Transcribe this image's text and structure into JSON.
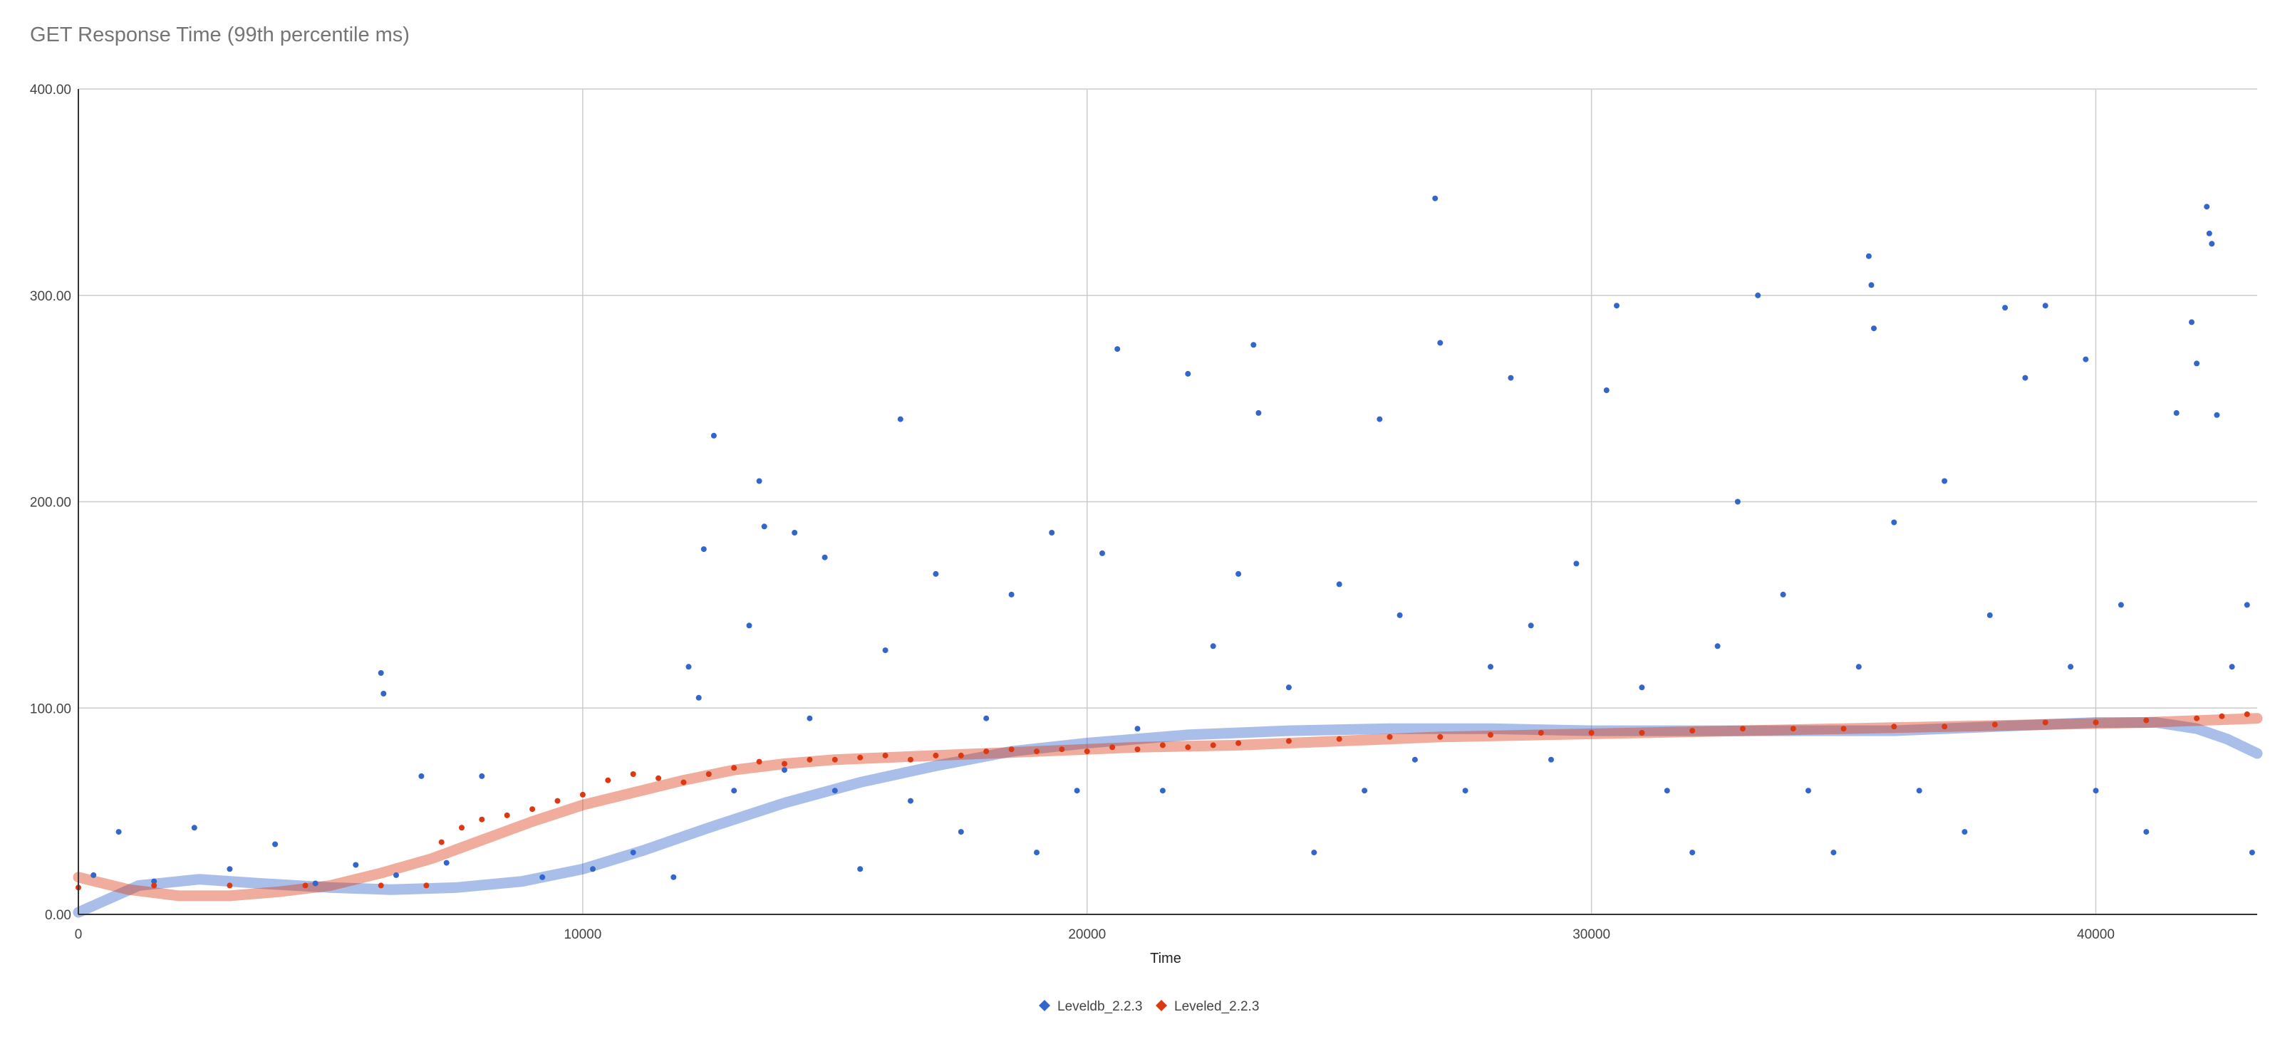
{
  "chart_data": {
    "type": "scatter",
    "title": "GET Response Time (99th percentile ms)",
    "xlabel": "Time",
    "ylabel": "",
    "xlim": [
      0,
      43200
    ],
    "ylim": [
      0,
      400
    ],
    "x_ticks": [
      0,
      10000,
      20000,
      30000,
      40000
    ],
    "x_tick_labels": [
      "0",
      "10000",
      "20000",
      "30000",
      "40000"
    ],
    "y_ticks": [
      0,
      100,
      200,
      300,
      400
    ],
    "y_tick_labels": [
      "0.00",
      "100.00",
      "200.00",
      "300.00",
      "400.00"
    ],
    "grid": true,
    "legend_position": "bottom",
    "series": [
      {
        "name": "Leveldb_2.2.3",
        "color": "#3366cc",
        "points": [
          [
            300,
            19
          ],
          [
            800,
            40
          ],
          [
            1500,
            16
          ],
          [
            2300,
            42
          ],
          [
            3000,
            22
          ],
          [
            3900,
            34
          ],
          [
            4700,
            15
          ],
          [
            5500,
            24
          ],
          [
            6000,
            117
          ],
          [
            6050,
            107
          ],
          [
            6300,
            19
          ],
          [
            6800,
            67
          ],
          [
            7300,
            25
          ],
          [
            8000,
            67
          ],
          [
            9200,
            18
          ],
          [
            10200,
            22
          ],
          [
            11000,
            30
          ],
          [
            11800,
            18
          ],
          [
            12100,
            120
          ],
          [
            12300,
            105
          ],
          [
            12400,
            177
          ],
          [
            12600,
            232
          ],
          [
            13000,
            60
          ],
          [
            13300,
            140
          ],
          [
            13500,
            210
          ],
          [
            13600,
            188
          ],
          [
            14000,
            70
          ],
          [
            14200,
            185
          ],
          [
            14500,
            95
          ],
          [
            14800,
            173
          ],
          [
            15000,
            60
          ],
          [
            15500,
            22
          ],
          [
            16000,
            128
          ],
          [
            16300,
            240
          ],
          [
            16500,
            55
          ],
          [
            17000,
            165
          ],
          [
            17500,
            40
          ],
          [
            18000,
            95
          ],
          [
            18500,
            155
          ],
          [
            19000,
            30
          ],
          [
            19300,
            185
          ],
          [
            19800,
            60
          ],
          [
            20300,
            175
          ],
          [
            20600,
            274
          ],
          [
            21000,
            90
          ],
          [
            21500,
            60
          ],
          [
            22000,
            262
          ],
          [
            22500,
            130
          ],
          [
            23000,
            165
          ],
          [
            23300,
            276
          ],
          [
            23400,
            243
          ],
          [
            24000,
            110
          ],
          [
            24500,
            30
          ],
          [
            25000,
            160
          ],
          [
            25500,
            60
          ],
          [
            25800,
            240
          ],
          [
            26200,
            145
          ],
          [
            26500,
            75
          ],
          [
            26900,
            347
          ],
          [
            27000,
            277
          ],
          [
            27500,
            60
          ],
          [
            28000,
            120
          ],
          [
            28400,
            260
          ],
          [
            28800,
            140
          ],
          [
            29200,
            75
          ],
          [
            29700,
            170
          ],
          [
            30300,
            254
          ],
          [
            30500,
            295
          ],
          [
            31000,
            110
          ],
          [
            31500,
            60
          ],
          [
            32000,
            30
          ],
          [
            32500,
            130
          ],
          [
            32900,
            200
          ],
          [
            33300,
            300
          ],
          [
            33800,
            155
          ],
          [
            34300,
            60
          ],
          [
            34800,
            30
          ],
          [
            35300,
            120
          ],
          [
            35500,
            319
          ],
          [
            35550,
            305
          ],
          [
            35600,
            284
          ],
          [
            36000,
            190
          ],
          [
            36500,
            60
          ],
          [
            37000,
            210
          ],
          [
            37400,
            40
          ],
          [
            37900,
            145
          ],
          [
            38200,
            294
          ],
          [
            38600,
            260
          ],
          [
            39000,
            295
          ],
          [
            39500,
            120
          ],
          [
            39800,
            269
          ],
          [
            40000,
            60
          ],
          [
            40500,
            150
          ],
          [
            41000,
            40
          ],
          [
            41600,
            243
          ],
          [
            41900,
            287
          ],
          [
            42000,
            267
          ],
          [
            42200,
            343
          ],
          [
            42250,
            330
          ],
          [
            42300,
            325
          ],
          [
            42400,
            242
          ],
          [
            42700,
            120
          ],
          [
            43000,
            150
          ],
          [
            43100,
            30
          ]
        ],
        "trendline": [
          [
            0,
            1
          ],
          [
            1200,
            14
          ],
          [
            2400,
            17
          ],
          [
            3600,
            15
          ],
          [
            5000,
            13
          ],
          [
            6200,
            12
          ],
          [
            7500,
            13
          ],
          [
            8800,
            16
          ],
          [
            10000,
            22
          ],
          [
            11200,
            31
          ],
          [
            12500,
            42
          ],
          [
            14000,
            54
          ],
          [
            15500,
            64
          ],
          [
            17000,
            72
          ],
          [
            18500,
            79
          ],
          [
            20000,
            83
          ],
          [
            22000,
            87
          ],
          [
            24000,
            89
          ],
          [
            26000,
            90
          ],
          [
            28000,
            90
          ],
          [
            30000,
            89
          ],
          [
            32000,
            89
          ],
          [
            34000,
            89
          ],
          [
            36000,
            89
          ],
          [
            38000,
            91
          ],
          [
            40000,
            93
          ],
          [
            41200,
            93
          ],
          [
            42000,
            90
          ],
          [
            42600,
            85
          ],
          [
            43200,
            78
          ]
        ]
      },
      {
        "name": "Leveled_2.2.3",
        "color": "#dc3912",
        "points": [
          [
            0,
            13
          ],
          [
            1500,
            14
          ],
          [
            3000,
            14
          ],
          [
            4500,
            14
          ],
          [
            6000,
            14
          ],
          [
            6900,
            14
          ],
          [
            7200,
            35
          ],
          [
            7600,
            42
          ],
          [
            8000,
            46
          ],
          [
            8500,
            48
          ],
          [
            9000,
            51
          ],
          [
            9500,
            55
          ],
          [
            10000,
            58
          ],
          [
            10500,
            65
          ],
          [
            11000,
            68
          ],
          [
            11500,
            66
          ],
          [
            12000,
            64
          ],
          [
            12500,
            68
          ],
          [
            13000,
            71
          ],
          [
            13500,
            74
          ],
          [
            14000,
            73
          ],
          [
            14500,
            75
          ],
          [
            15000,
            75
          ],
          [
            15500,
            76
          ],
          [
            16000,
            77
          ],
          [
            16500,
            75
          ],
          [
            17000,
            77
          ],
          [
            17500,
            77
          ],
          [
            18000,
            79
          ],
          [
            18500,
            80
          ],
          [
            19000,
            79
          ],
          [
            19500,
            80
          ],
          [
            20000,
            79
          ],
          [
            20500,
            81
          ],
          [
            21000,
            80
          ],
          [
            21500,
            82
          ],
          [
            22000,
            81
          ],
          [
            22500,
            82
          ],
          [
            23000,
            83
          ],
          [
            24000,
            84
          ],
          [
            25000,
            85
          ],
          [
            26000,
            86
          ],
          [
            27000,
            86
          ],
          [
            28000,
            87
          ],
          [
            29000,
            88
          ],
          [
            30000,
            88
          ],
          [
            31000,
            88
          ],
          [
            32000,
            89
          ],
          [
            33000,
            90
          ],
          [
            34000,
            90
          ],
          [
            35000,
            90
          ],
          [
            36000,
            91
          ],
          [
            37000,
            91
          ],
          [
            38000,
            92
          ],
          [
            39000,
            93
          ],
          [
            40000,
            93
          ],
          [
            41000,
            94
          ],
          [
            42000,
            95
          ],
          [
            42500,
            96
          ],
          [
            43000,
            97
          ]
        ],
        "trendline": [
          [
            0,
            18
          ],
          [
            1000,
            12
          ],
          [
            2000,
            9
          ],
          [
            3000,
            9
          ],
          [
            4000,
            11
          ],
          [
            5000,
            14
          ],
          [
            6000,
            20
          ],
          [
            7000,
            27
          ],
          [
            8000,
            36
          ],
          [
            9000,
            45
          ],
          [
            10000,
            53
          ],
          [
            11000,
            59
          ],
          [
            12000,
            65
          ],
          [
            13000,
            70
          ],
          [
            14000,
            73
          ],
          [
            15000,
            75
          ],
          [
            17000,
            77
          ],
          [
            19000,
            79
          ],
          [
            21000,
            81
          ],
          [
            23000,
            82
          ],
          [
            25000,
            84
          ],
          [
            27000,
            86
          ],
          [
            29000,
            87
          ],
          [
            31000,
            88
          ],
          [
            33000,
            89
          ],
          [
            35000,
            90
          ],
          [
            37000,
            91
          ],
          [
            39000,
            92
          ],
          [
            41000,
            93
          ],
          [
            43200,
            95
          ]
        ]
      }
    ]
  }
}
